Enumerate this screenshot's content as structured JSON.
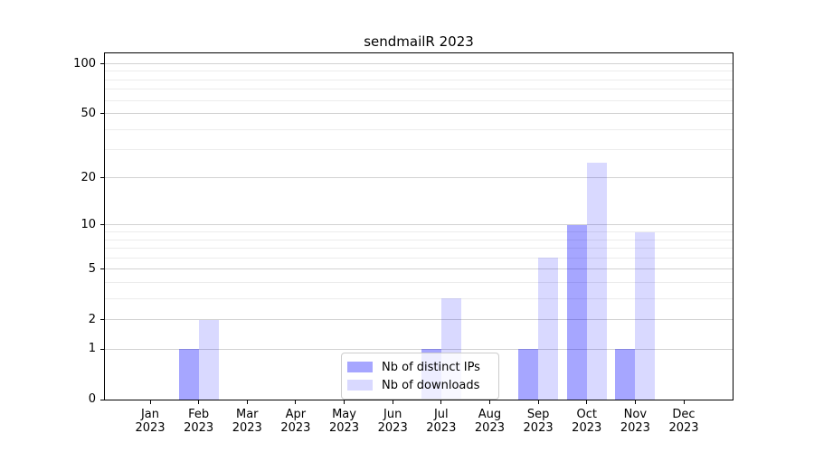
{
  "figure": {
    "title": "sendmailR 2023"
  },
  "legend": {
    "items": [
      {
        "label": "Nb of distinct IPs",
        "color": "rgba(0,0,255,0.35)"
      },
      {
        "label": "Nb of downloads",
        "color": "rgba(0,0,255,0.15)"
      }
    ]
  },
  "colors": {
    "background": "#ffffff",
    "axis_line": "#000000",
    "grid_major": "#d2d2d2",
    "grid_minor": "#ececec",
    "bar_distinct_ips": "rgba(0,0,255,0.35)",
    "bar_downloads": "rgba(0,0,255,0.15)",
    "legend_border": "#cccccc",
    "legend_background": "rgba(255,255,255,0.8)"
  },
  "chart_data": {
    "type": "bar",
    "title": "sendmailR 2023",
    "categories": [
      "Jan 2023",
      "Feb 2023",
      "Mar 2023",
      "Apr 2023",
      "May 2023",
      "Jun 2023",
      "Jul 2023",
      "Aug 2023",
      "Sep 2023",
      "Oct 2023",
      "Nov 2023",
      "Dec 2023"
    ],
    "series": [
      {
        "name": "Nb of distinct IPs",
        "values": [
          0,
          1,
          0,
          0,
          0,
          0,
          1,
          0,
          1,
          10,
          1,
          0
        ]
      },
      {
        "name": "Nb of downloads",
        "values": [
          0,
          2,
          0,
          0,
          0,
          0,
          3,
          0,
          6,
          25,
          9,
          0
        ]
      }
    ],
    "xlabel": "",
    "ylabel": "",
    "yscale": "log1p",
    "ylim": [
      0,
      117
    ],
    "yticks": [
      0,
      1,
      2,
      5,
      10,
      20,
      50,
      100
    ],
    "yticks_minor": [
      3,
      4,
      6,
      7,
      8,
      9,
      30,
      40,
      60,
      70,
      80,
      90
    ],
    "grid": "horizontal, major and minor",
    "legend_position": "lower center"
  }
}
